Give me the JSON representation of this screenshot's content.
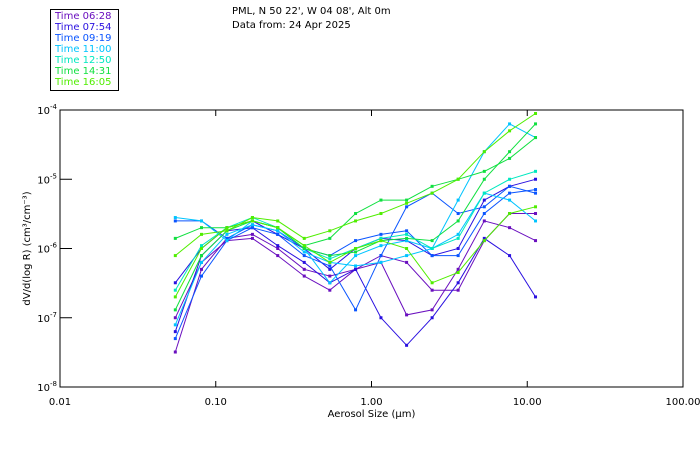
{
  "header": {
    "location": "PML, N 50 22', W 04 08', Alt 0m",
    "date_line": "Data from: 24 Apr 2025"
  },
  "legend": [
    {
      "label": "Time 06:28",
      "color": "#6a0fbf"
    },
    {
      "label": "Time 07:54",
      "color": "#2a10e0"
    },
    {
      "label": "Time 09:19",
      "color": "#0a55ff"
    },
    {
      "label": "Time 11:00",
      "color": "#00c4ff"
    },
    {
      "label": "Time 12:50",
      "color": "#00e8c0"
    },
    {
      "label": "Time 14:31",
      "color": "#10e040"
    },
    {
      "label": "Time 16:05",
      "color": "#50ee00"
    }
  ],
  "chart_data": {
    "type": "line",
    "xscale": "log",
    "yscale": "log",
    "xlabel": "Aerosol Size (μm)",
    "ylabel": "dV/d(log R) (cm³/cm⁻³)",
    "xlim": [
      0.01,
      100
    ],
    "ylim": [
      1e-08,
      0.0001
    ],
    "xticks": [
      {
        "v": 0.01,
        "label": "0.01"
      },
      {
        "v": 0.1,
        "label": "0.10"
      },
      {
        "v": 1,
        "label": "1.00"
      },
      {
        "v": 10,
        "label": "10.00"
      },
      {
        "v": 100,
        "label": "100.00"
      }
    ],
    "yticks": [
      {
        "v": 0.0001,
        "exp": "-4"
      },
      {
        "v": 1e-05,
        "exp": "-5"
      },
      {
        "v": 1e-06,
        "exp": "-6"
      },
      {
        "v": 1e-07,
        "exp": "-7"
      },
      {
        "v": 1e-08,
        "exp": "-8"
      }
    ],
    "ytick_base": "10",
    "x": [
      0.055,
      0.081,
      0.118,
      0.172,
      0.25,
      0.37,
      0.54,
      0.79,
      1.15,
      1.68,
      2.45,
      3.6,
      5.3,
      7.7,
      11.3
    ],
    "series": [
      {
        "name": "Time 06:28",
        "legend": 0,
        "values": [
          3.2e-08,
          5e-07,
          1.4e-06,
          1.6e-06,
          1e-06,
          5e-07,
          4e-07,
          5e-07,
          7.9e-07,
          6.3e-07,
          2.5e-07,
          2.5e-07,
          1.3e-06,
          3.2e-06,
          3.2e-06
        ]
      },
      {
        "name": "Time 06:28",
        "legend": 0,
        "values": [
          1e-07,
          6.3e-07,
          1.3e-06,
          1.4e-06,
          7.9e-07,
          4e-07,
          2.5e-07,
          5e-07,
          6.3e-07,
          1.1e-07,
          1.3e-07,
          5e-07,
          2.5e-06,
          2e-06,
          1.3e-06
        ]
      },
      {
        "name": "Time 07:54",
        "legend": 1,
        "values": [
          6.3e-08,
          7.9e-07,
          1.8e-06,
          2e-06,
          1.1e-06,
          6.3e-07,
          3.2e-07,
          5e-07,
          1e-07,
          4e-08,
          1e-07,
          3.2e-07,
          1.4e-06,
          7.9e-07,
          2e-07
        ]
      },
      {
        "name": "Time 07:54",
        "legend": 1,
        "values": [
          3.2e-07,
          1e-06,
          2e-06,
          2.5e-06,
          1.6e-06,
          1e-06,
          5e-07,
          1e-06,
          1.4e-06,
          1.3e-06,
          7.9e-07,
          1e-06,
          5e-06,
          7.9e-06,
          1e-05
        ]
      },
      {
        "name": "Time 09:19",
        "legend": 2,
        "values": [
          2.5e-06,
          2.5e-06,
          1.4e-06,
          2.2e-06,
          1.8e-06,
          1e-06,
          7.9e-07,
          1.3e-06,
          1.6e-06,
          1.8e-06,
          7.9e-07,
          7.9e-07,
          3.2e-06,
          6.3e-06,
          7.1e-06
        ]
      },
      {
        "name": "Time 09:19",
        "legend": 2,
        "values": [
          5e-08,
          4e-07,
          1.3e-06,
          2e-06,
          1.6e-06,
          7.9e-07,
          5.6e-07,
          1.3e-07,
          7.9e-07,
          4e-06,
          6.3e-06,
          3.2e-06,
          4e-06,
          7.9e-06,
          6.3e-06
        ]
      },
      {
        "name": "Time 11:00",
        "legend": 3,
        "values": [
          2.8e-06,
          2.5e-06,
          1.3e-06,
          2.5e-06,
          2e-06,
          1e-06,
          3.2e-07,
          7.9e-07,
          1.1e-06,
          1.3e-06,
          1e-06,
          5e-06,
          2.5e-05,
          6.3e-05,
          4e-05
        ]
      },
      {
        "name": "Time 11:00",
        "legend": 3,
        "values": [
          7.9e-08,
          6.3e-07,
          1.6e-06,
          2.2e-06,
          1.8e-06,
          8.9e-07,
          6.3e-07,
          5.6e-07,
          6.3e-07,
          7.9e-07,
          1e-06,
          1.6e-06,
          6.3e-06,
          5e-06,
          2.5e-06
        ]
      },
      {
        "name": "Time 12:50",
        "legend": 4,
        "values": [
          2.5e-07,
          1.1e-06,
          2e-06,
          2.8e-06,
          2e-06,
          1e-06,
          7.1e-07,
          1e-06,
          1.4e-06,
          1.6e-06,
          1e-06,
          1.4e-06,
          6.3e-06,
          1e-05,
          1.3e-05
        ]
      },
      {
        "name": "Time 14:31",
        "legend": 5,
        "values": [
          1.4e-06,
          2e-06,
          2e-06,
          2.5e-06,
          2e-06,
          1.1e-06,
          1.4e-06,
          3.2e-06,
          5e-06,
          5e-06,
          7.9e-06,
          1e-05,
          1.3e-05,
          2e-05,
          4e-05
        ]
      },
      {
        "name": "Time 14:31",
        "legend": 5,
        "values": [
          1.3e-07,
          7.9e-07,
          1.8e-06,
          2.5e-06,
          2e-06,
          1e-06,
          7.9e-07,
          8.9e-07,
          1.3e-06,
          1.4e-06,
          1.3e-06,
          2.5e-06,
          1e-05,
          2.5e-05,
          6.3e-05
        ]
      },
      {
        "name": "Time 16:05",
        "legend": 6,
        "values": [
          7.9e-07,
          1.6e-06,
          1.8e-06,
          2.8e-06,
          2.5e-06,
          1.4e-06,
          1.8e-06,
          2.5e-06,
          3.2e-06,
          4.5e-06,
          6.3e-06,
          1e-05,
          2.5e-05,
          5e-05,
          8.9e-05
        ]
      },
      {
        "name": "Time 16:05",
        "legend": 6,
        "values": [
          2e-07,
          1e-06,
          2e-06,
          2.5e-06,
          2e-06,
          1.1e-06,
          6.3e-07,
          1e-06,
          1.3e-06,
          1e-06,
          3.2e-07,
          4.5e-07,
          1.3e-06,
          3.2e-06,
          4e-06
        ]
      }
    ]
  }
}
